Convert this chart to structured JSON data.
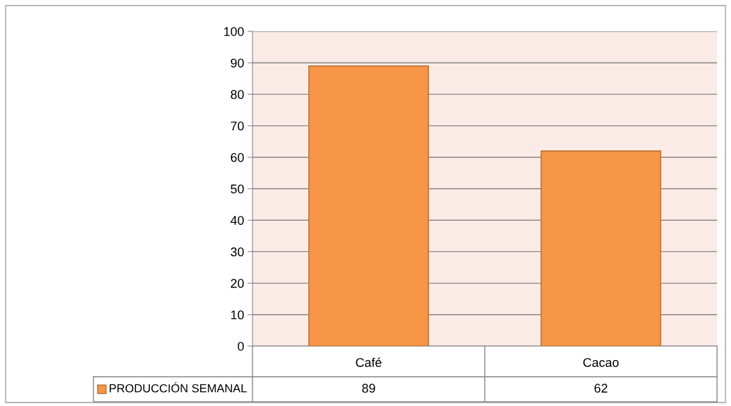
{
  "chart_data": {
    "type": "bar",
    "categories": [
      "Café",
      "Cacao"
    ],
    "series": [
      {
        "name": "PRODUCCIÓN SEMANAL",
        "color": "#f79646",
        "values": [
          89,
          62
        ]
      }
    ],
    "ylim": [
      0,
      100
    ],
    "yticks": [
      0,
      10,
      20,
      30,
      40,
      50,
      60,
      70,
      80,
      90,
      100
    ],
    "grid": "y",
    "data_labels": true,
    "legend": "bottom left"
  }
}
